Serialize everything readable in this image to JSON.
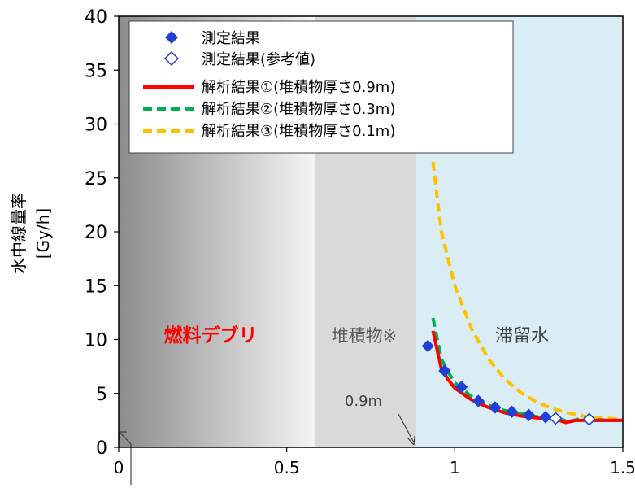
{
  "chart_data": {
    "type": "line",
    "xlim": [
      0,
      1.5
    ],
    "ylim": [
      0,
      40
    ],
    "x_ticks": [
      "0",
      "0.5",
      "1",
      "1.5"
    ],
    "y_ticks": [
      "0",
      "5",
      "10",
      "15",
      "20",
      "25",
      "30",
      "35",
      "40"
    ],
    "ylabel_line1": "水中線量率",
    "ylabel_line2": "[Gy/h]",
    "grid": false,
    "legend_position": "top-left",
    "regions": [
      {
        "name": "燃料デブリ",
        "x_start": 0,
        "x_end": 0.6,
        "color": "#ff0000"
      },
      {
        "name": "堆積物※",
        "x_start": 0.6,
        "x_end": 0.9,
        "color": "#595959"
      },
      {
        "name": "滞留水",
        "x_start": 0.9,
        "x_end": 1.5,
        "color": "#404040"
      }
    ],
    "annotations": [
      {
        "text": "0.9m",
        "x": 0.9,
        "y": 0
      }
    ],
    "series": [
      {
        "name": "測定結果",
        "kind": "scatter",
        "marker": "diamond-filled",
        "color": "#1f3fd6",
        "points": [
          [
            0.92,
            9.4
          ],
          [
            0.97,
            7.1
          ],
          [
            1.02,
            5.6
          ],
          [
            1.07,
            4.3
          ],
          [
            1.12,
            3.7
          ],
          [
            1.17,
            3.3
          ],
          [
            1.22,
            3.0
          ],
          [
            1.27,
            2.8
          ]
        ]
      },
      {
        "name": "測定結果(参考値)",
        "kind": "scatter",
        "marker": "diamond-open",
        "color": "#1f3fd6",
        "points": [
          [
            1.3,
            2.7
          ],
          [
            1.4,
            2.6
          ]
        ]
      },
      {
        "name": "解析結果①(堆積物厚さ0.9m)",
        "kind": "line",
        "dash": "solid",
        "color": "#ff0000",
        "points": [
          [
            0.935,
            10.8
          ],
          [
            0.96,
            7.3
          ],
          [
            0.98,
            6.3
          ],
          [
            1.0,
            5.5
          ],
          [
            1.05,
            4.4
          ],
          [
            1.1,
            3.7
          ],
          [
            1.15,
            3.2
          ],
          [
            1.2,
            2.9
          ],
          [
            1.25,
            2.7
          ],
          [
            1.3,
            2.6
          ],
          [
            1.33,
            2.3
          ],
          [
            1.36,
            2.5
          ],
          [
            1.4,
            2.5
          ],
          [
            1.5,
            2.5
          ]
        ]
      },
      {
        "name": "解析結果②(堆積物厚さ0.3m)",
        "kind": "line",
        "dash": "dashed",
        "color": "#00b050",
        "points": [
          [
            0.935,
            12.0
          ],
          [
            0.96,
            8.2
          ],
          [
            0.98,
            7.0
          ],
          [
            1.0,
            6.0
          ],
          [
            1.05,
            4.7
          ],
          [
            1.1,
            3.9
          ],
          [
            1.15,
            3.4
          ],
          [
            1.2,
            3.1
          ],
          [
            1.25,
            2.8
          ],
          [
            1.3,
            2.7
          ],
          [
            1.34,
            2.4
          ],
          [
            1.38,
            2.7
          ],
          [
            1.45,
            2.5
          ],
          [
            1.5,
            2.5
          ]
        ]
      },
      {
        "name": "解析結果③(堆積物厚さ0.1m)",
        "kind": "line",
        "dash": "dashed",
        "color": "#ffc000",
        "points": [
          [
            0.935,
            26.5
          ],
          [
            0.96,
            20.0
          ],
          [
            1.0,
            15.0
          ],
          [
            1.05,
            11.0
          ],
          [
            1.1,
            8.2
          ],
          [
            1.15,
            6.3
          ],
          [
            1.2,
            5.0
          ],
          [
            1.25,
            4.1
          ],
          [
            1.3,
            3.5
          ],
          [
            1.35,
            3.1
          ],
          [
            1.4,
            2.8
          ],
          [
            1.45,
            2.7
          ],
          [
            1.5,
            2.6
          ]
        ]
      }
    ]
  }
}
